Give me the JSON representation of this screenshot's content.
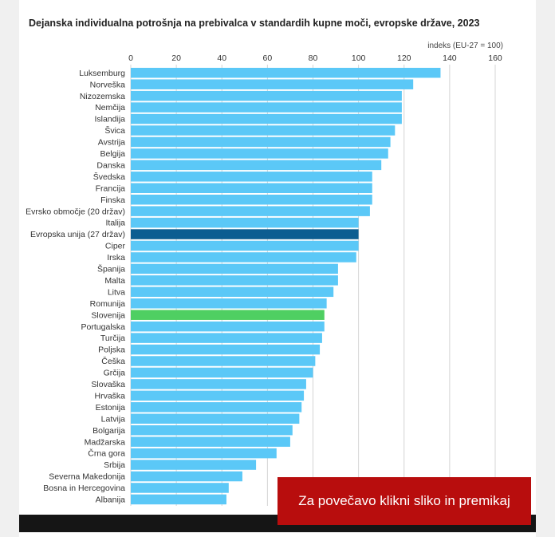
{
  "title": "Dejanska individualna potrošnja na prebivalca v standardih kupne moči, evropske države, 2023",
  "zoom_hint": "Za povečavo klikni sliko in premikaj",
  "chart_data": {
    "type": "bar",
    "orientation": "horizontal",
    "title": "Dejanska individualna potrošnja na prebivalca v standardih kupne moči, evropske države, 2023",
    "unit_label": "indeks (EU-27 = 100)",
    "xlim": [
      0,
      160
    ],
    "xticks": [
      "0",
      "20",
      "40",
      "60",
      "80",
      "100",
      "120",
      "140",
      "160"
    ],
    "grid": true,
    "colors": {
      "default": "#5bc8f7",
      "eu": "#0c5d91",
      "highlight": "#4fcf62"
    },
    "categories": [
      "Luksemburg",
      "Norveška",
      "Nizozemska",
      "Nemčija",
      "Islandija",
      "Švica",
      "Avstrija",
      "Belgija",
      "Danska",
      "Švedska",
      "Francija",
      "Finska",
      "Evrsko območje (20 držav)",
      "Italija",
      "Evropska unija (27 držav)",
      "Ciper",
      "Irska",
      "Španija",
      "Malta",
      "Litva",
      "Romunija",
      "Slovenija",
      "Portugalska",
      "Turčija",
      "Poljska",
      "Češka",
      "Grčija",
      "Slovaška",
      "Hrvaška",
      "Estonija",
      "Latvija",
      "Bolgarija",
      "Madžarska",
      "Črna gora",
      "Srbija",
      "Severna Makedonija",
      "Bosna in Hercegovina",
      "Albanija"
    ],
    "values": [
      136,
      124,
      119,
      119,
      119,
      116,
      114,
      113,
      110,
      106,
      106,
      106,
      105,
      100,
      100,
      100,
      99,
      91,
      91,
      89,
      86,
      85,
      85,
      84,
      83,
      81,
      80,
      77,
      76,
      75,
      74,
      71,
      70,
      64,
      55,
      49,
      43,
      42
    ],
    "highlight": {
      "Evropska unija (27 držav)": "eu",
      "Slovenija": "highlight"
    }
  }
}
